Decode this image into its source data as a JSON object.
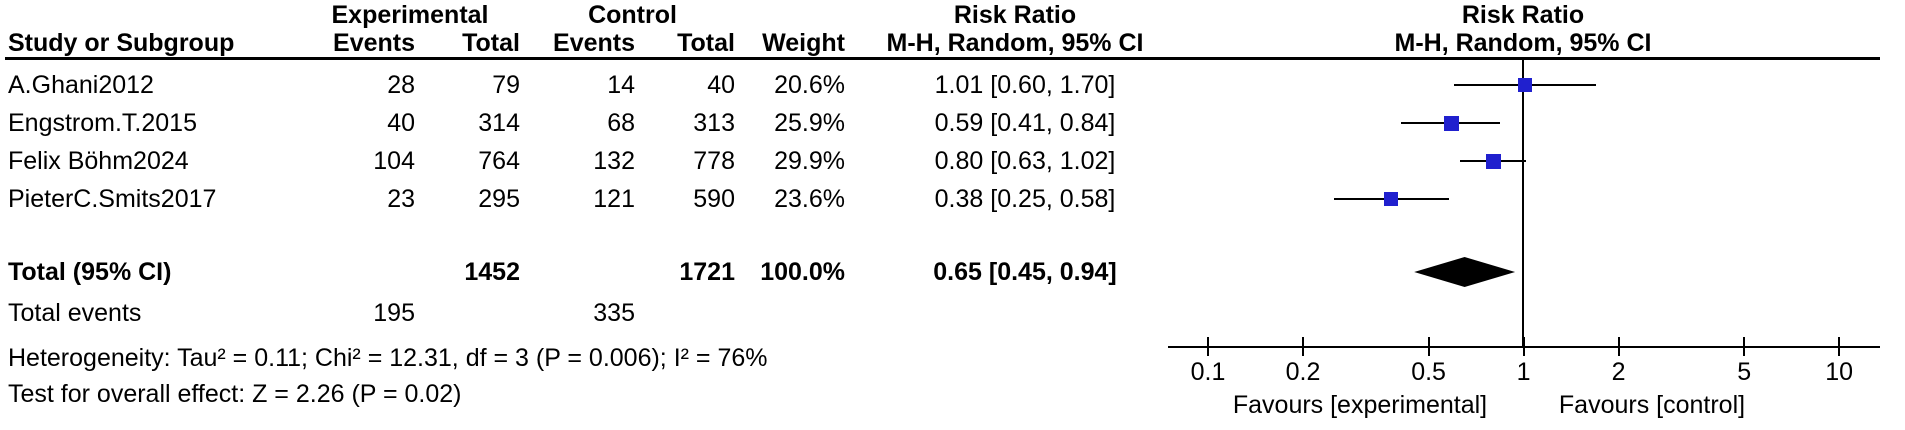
{
  "table": {
    "group_headers": {
      "experimental": "Experimental",
      "control": "Control",
      "risk_ratio": "Risk Ratio"
    },
    "col_headers": {
      "study": "Study or Subgroup",
      "events": "Events",
      "total": "Total",
      "weight": "Weight",
      "mh_ci": "M-H, Random, 95% CI"
    },
    "plot_headers": {
      "risk_ratio": "Risk Ratio",
      "mh_ci": "M-H, Random, 95% CI"
    }
  },
  "chart_data": {
    "type": "forest",
    "effect_measure": "Risk Ratio",
    "method": "M-H, Random, 95% CI",
    "x_scale": "log",
    "axis_ticks": [
      {
        "v": 0.1,
        "label": "0.1"
      },
      {
        "v": 0.2,
        "label": "0.2"
      },
      {
        "v": 0.5,
        "label": "0.5"
      },
      {
        "v": 1,
        "label": "1"
      },
      {
        "v": 2,
        "label": "2"
      },
      {
        "v": 5,
        "label": "5"
      },
      {
        "v": 10,
        "label": "10"
      }
    ],
    "xlim": [
      0.075,
      13.4
    ],
    "studies": [
      {
        "name": "A.Ghani2012",
        "exp_events": "28",
        "exp_total": "79",
        "ctrl_events": "14",
        "ctrl_total": "40",
        "weight": "20.6%",
        "ci_label": "1.01 [0.60, 1.70]",
        "rr": 1.01,
        "lo": 0.6,
        "hi": 1.7
      },
      {
        "name": "Engstrom.T.2015",
        "exp_events": "40",
        "exp_total": "314",
        "ctrl_events": "68",
        "ctrl_total": "313",
        "weight": "25.9%",
        "ci_label": "0.59 [0.41, 0.84]",
        "rr": 0.59,
        "lo": 0.41,
        "hi": 0.84
      },
      {
        "name": "Felix Böhm2024",
        "exp_events": "104",
        "exp_total": "764",
        "ctrl_events": "132",
        "ctrl_total": "778",
        "weight": "29.9%",
        "ci_label": "0.80 [0.63, 1.02]",
        "rr": 0.8,
        "lo": 0.63,
        "hi": 1.02
      },
      {
        "name": "PieterC.Smits2017",
        "exp_events": "23",
        "exp_total": "295",
        "ctrl_events": "121",
        "ctrl_total": "590",
        "weight": "23.6%",
        "ci_label": "0.38 [0.25, 0.58]",
        "rr": 0.38,
        "lo": 0.25,
        "hi": 0.58
      }
    ],
    "total": {
      "label": "Total (95% CI)",
      "exp_total": "1452",
      "ctrl_total": "1721",
      "weight": "100.0%",
      "ci_label": "0.65 [0.45, 0.94]",
      "rr": 0.65,
      "lo": 0.45,
      "hi": 0.94
    },
    "total_events": {
      "label": "Total events",
      "exp": "195",
      "ctrl": "335"
    },
    "heterogeneity": "Heterogeneity: Tau² = 0.11; Chi² = 12.31, df = 3 (P = 0.006); I² = 76%",
    "overall_effect": "Test for overall effect: Z = 2.26 (P = 0.02)",
    "favours_left": "Favours [experimental]",
    "favours_right": "Favours [control]",
    "colors": {
      "square": "#2020CE",
      "diamond": "#000000",
      "line": "#000000",
      "text": "#000000"
    }
  }
}
